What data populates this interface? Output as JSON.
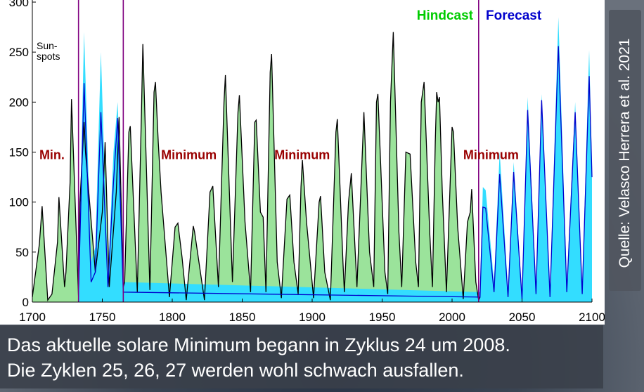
{
  "chart_data": {
    "type": "line",
    "legend": {
      "hindcast_label": "Hindcast",
      "forecast_label": "Forecast",
      "hindcast_color": "#00cc00",
      "forecast_color": "#0000cc"
    },
    "ylabel": "Sun-\nspots",
    "xlim": [
      1700,
      2100
    ],
    "ylim": [
      0,
      300
    ],
    "x_ticks": [
      "1700",
      "1750",
      "1800",
      "1850",
      "1900",
      "1950",
      "2000",
      "2050",
      "2100"
    ],
    "y_ticks": [
      "0",
      "50",
      "100",
      "150",
      "200",
      "250",
      "300"
    ],
    "grid": false,
    "annotations": [
      {
        "text": "Min.",
        "x": 1705,
        "y": 148,
        "color": "#990000"
      },
      {
        "text": "Minimum",
        "x": 1792,
        "y": 148,
        "color": "#990000"
      },
      {
        "text": "Minimum",
        "x": 1873,
        "y": 148,
        "color": "#990000"
      },
      {
        "text": "Minimum",
        "x": 2008,
        "y": 148,
        "color": "#990000"
      }
    ],
    "vertical_lines": [
      1733,
      1765,
      2019
    ],
    "vertical_line_color": "#800080",
    "series": [
      {
        "name": "Hindcast",
        "fill_color": "#9be39b",
        "line_color": "#000000",
        "points": [
          [
            1700,
            5
          ],
          [
            1705,
            58
          ],
          [
            1707,
            96
          ],
          [
            1711,
            2
          ],
          [
            1714,
            8
          ],
          [
            1718,
            60
          ],
          [
            1719,
            105
          ],
          [
            1723,
            15
          ],
          [
            1724,
            30
          ],
          [
            1727,
            120
          ],
          [
            1728,
            203
          ],
          [
            1733,
            5
          ],
          [
            1734,
            100
          ],
          [
            1737,
            180
          ],
          [
            1738,
            150
          ],
          [
            1745,
            30
          ],
          [
            1750,
            90
          ],
          [
            1752,
            160
          ],
          [
            1755,
            15
          ],
          [
            1760,
            110
          ],
          [
            1762,
            185
          ],
          [
            1765,
            15
          ],
          [
            1766,
            20
          ],
          [
            1769,
            170
          ],
          [
            1770,
            176
          ],
          [
            1775,
            10
          ],
          [
            1778,
            190
          ],
          [
            1779,
            258
          ],
          [
            1784,
            12
          ],
          [
            1787,
            210
          ],
          [
            1788,
            220
          ],
          [
            1790,
            160
          ],
          [
            1792,
            110
          ],
          [
            1798,
            5
          ],
          [
            1802,
            75
          ],
          [
            1804,
            79
          ],
          [
            1807,
            45
          ],
          [
            1810,
            2
          ],
          [
            1815,
            76
          ],
          [
            1816,
            70
          ],
          [
            1823,
            2
          ],
          [
            1827,
            110
          ],
          [
            1829,
            116
          ],
          [
            1833,
            15
          ],
          [
            1837,
            200
          ],
          [
            1838,
            227
          ],
          [
            1843,
            20
          ],
          [
            1847,
            190
          ],
          [
            1848,
            207
          ],
          [
            1852,
            80
          ],
          [
            1856,
            10
          ],
          [
            1859,
            180
          ],
          [
            1860,
            182
          ],
          [
            1863,
            90
          ],
          [
            1865,
            85
          ],
          [
            1867,
            10
          ],
          [
            1870,
            230
          ],
          [
            1871,
            248
          ],
          [
            1875,
            40
          ],
          [
            1878,
            4
          ],
          [
            1882,
            103
          ],
          [
            1884,
            107
          ],
          [
            1887,
            40
          ],
          [
            1890,
            8
          ],
          [
            1892,
            115
          ],
          [
            1893,
            142
          ],
          [
            1896,
            80
          ],
          [
            1901,
            4
          ],
          [
            1905,
            100
          ],
          [
            1906,
            106
          ],
          [
            1909,
            30
          ],
          [
            1913,
            2
          ],
          [
            1917,
            170
          ],
          [
            1918,
            183
          ],
          [
            1922,
            40
          ],
          [
            1923,
            10
          ],
          [
            1926,
            100
          ],
          [
            1928,
            129
          ],
          [
            1932,
            15
          ],
          [
            1935,
            120
          ],
          [
            1937,
            190
          ],
          [
            1941,
            50
          ],
          [
            1944,
            15
          ],
          [
            1946,
            200
          ],
          [
            1947,
            208
          ],
          [
            1952,
            30
          ],
          [
            1954,
            8
          ],
          [
            1956,
            200
          ],
          [
            1958,
            270
          ],
          [
            1962,
            70
          ],
          [
            1964,
            15
          ],
          [
            1967,
            150
          ],
          [
            1970,
            148
          ],
          [
            1974,
            40
          ],
          [
            1976,
            15
          ],
          [
            1978,
            200
          ],
          [
            1980,
            220
          ],
          [
            1984,
            70
          ],
          [
            1986,
            15
          ],
          [
            1988,
            160
          ],
          [
            1989,
            210
          ],
          [
            1990,
            200
          ],
          [
            1991,
            205
          ],
          [
            1993,
            110
          ],
          [
            1996,
            10
          ],
          [
            2000,
            175
          ],
          [
            2001,
            170
          ],
          [
            2004,
            75
          ],
          [
            2008,
            3
          ],
          [
            2011,
            80
          ],
          [
            2013,
            90
          ],
          [
            2014,
            113
          ],
          [
            2017,
            20
          ],
          [
            2019,
            2
          ],
          [
            2020,
            5
          ]
        ]
      },
      {
        "name": "Forecast",
        "fill_color": "#33ddff",
        "line_color": "#0000cc",
        "points": [
          [
            1733,
            10
          ],
          [
            1737,
            219
          ],
          [
            1742,
            20
          ],
          [
            1745,
            30
          ],
          [
            1749,
            190
          ],
          [
            1754,
            15
          ],
          [
            1758,
            120
          ],
          [
            1761,
            184
          ],
          [
            1765,
            10
          ],
          [
            2020,
            5
          ],
          [
            2022,
            95
          ],
          [
            2024,
            94
          ],
          [
            2030,
            10
          ],
          [
            2034,
            128
          ],
          [
            2040,
            5
          ],
          [
            2044,
            130
          ],
          [
            2050,
            3
          ],
          [
            2054,
            192
          ],
          [
            2060,
            8
          ],
          [
            2064,
            202
          ],
          [
            2070,
            5
          ],
          [
            2076,
            256
          ],
          [
            2082,
            10
          ],
          [
            2088,
            190
          ],
          [
            2093,
            8
          ],
          [
            2098,
            226
          ],
          [
            2100,
            125
          ]
        ],
        "envelope_top": [
          [
            1733,
            20
          ],
          [
            1737,
            270
          ],
          [
            1742,
            40
          ],
          [
            1745,
            55
          ],
          [
            1749,
            250
          ],
          [
            1754,
            25
          ],
          [
            1758,
            150
          ],
          [
            1761,
            200
          ],
          [
            1765,
            20
          ],
          [
            2020,
            10
          ],
          [
            2022,
            115
          ],
          [
            2024,
            112
          ],
          [
            2030,
            20
          ],
          [
            2034,
            150
          ],
          [
            2040,
            12
          ],
          [
            2044,
            140
          ],
          [
            2050,
            8
          ],
          [
            2054,
            205
          ],
          [
            2060,
            15
          ],
          [
            2064,
            208
          ],
          [
            2070,
            10
          ],
          [
            2076,
            285
          ],
          [
            2082,
            20
          ],
          [
            2088,
            200
          ],
          [
            2093,
            15
          ],
          [
            2098,
            252
          ],
          [
            2100,
            135
          ]
        ]
      }
    ]
  },
  "source_label": "Quelle: Velasco Herrera et al. 2021",
  "caption": {
    "line1": "Das aktuelle solare Minimum begann in Zyklus 24 um 2008.",
    "line2": "Die Zyklen 25, 26, 27 werden wohl schwach ausfallen."
  }
}
